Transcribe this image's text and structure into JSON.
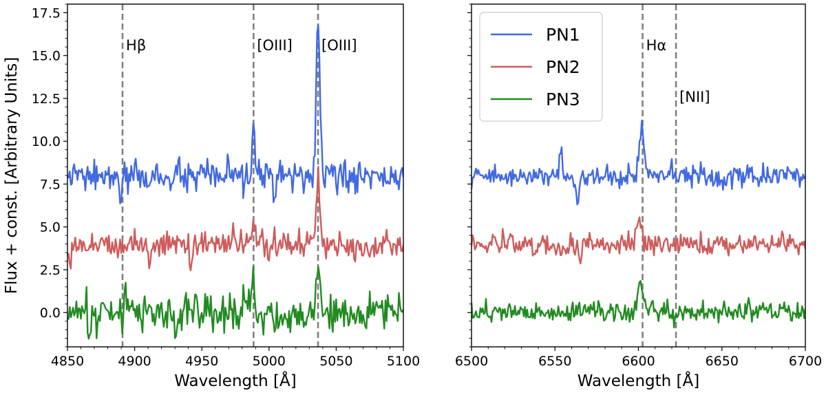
{
  "chart_data": [
    {
      "type": "line",
      "panel": "left",
      "xlabel": "Wavelength [Å]",
      "ylabel": "Flux + const. [Arbitrary Units]",
      "xlim": [
        4850,
        5100
      ],
      "ylim": [
        -2,
        18
      ],
      "xticks": [
        4850,
        4900,
        4950,
        5000,
        5050,
        5100
      ],
      "xtick_labels": [
        "4850",
        "4900",
        "4950",
        "5000",
        "5050",
        "5100"
      ],
      "yticks": [
        0,
        2.5,
        5,
        7.5,
        10,
        12.5,
        15,
        17.5
      ],
      "ytick_labels": [
        "0.0",
        "2.5",
        "5.0",
        "7.5",
        "10.0",
        "12.5",
        "15.0",
        "17.5"
      ],
      "vlines": [
        {
          "x": 4891,
          "label": "Hβ",
          "label_y": 15.3
        },
        {
          "x": 4988.5,
          "label": "[OIII]",
          "label_y": 15.3
        },
        {
          "x": 5036.5,
          "label": "[OIII]",
          "label_y": 15.3
        }
      ],
      "series": [
        {
          "name": "PN1",
          "color": "#4169e1",
          "base": 7.9,
          "noise": 0.45,
          "peaks": [
            {
              "x": 4988.5,
              "h": 2.9,
              "w": 1.1
            },
            {
              "x": 5036.5,
              "h": 9.4,
              "w": 1.3
            }
          ],
          "dips": [
            {
              "x": 4889.5,
              "h": -1.5,
              "w": 0.8
            }
          ]
        },
        {
          "name": "PN2",
          "color": "#cd5c5c",
          "base": 4.0,
          "noise": 0.4,
          "peaks": [
            {
              "x": 4988.5,
              "h": 1.1,
              "w": 1.1
            },
            {
              "x": 5036.5,
              "h": 3.6,
              "w": 1.3
            }
          ],
          "dips": [
            {
              "x": 4942,
              "h": -1.4,
              "w": 0.8
            },
            {
              "x": 4911,
              "h": -1.5,
              "w": 0.8
            },
            {
              "x": 4851,
              "h": -1.0,
              "w": 0.6
            }
          ]
        },
        {
          "name": "PN3",
          "color": "#228b22",
          "base": 0.0,
          "noise": 0.55,
          "peaks": [
            {
              "x": 4988,
              "h": 2.4,
              "w": 1.0
            },
            {
              "x": 5036.5,
              "h": 2.9,
              "w": 1.2
            },
            {
              "x": 4893,
              "h": 1.5,
              "w": 0.8
            }
          ],
          "dips": [
            {
              "x": 4931,
              "h": -1.8,
              "w": 0.8
            },
            {
              "x": 4866,
              "h": -1.5,
              "w": 0.8
            }
          ]
        }
      ]
    },
    {
      "type": "line",
      "panel": "right",
      "xlabel": "Wavelength [Å]",
      "xlim": [
        6500,
        6700
      ],
      "ylim": [
        -2,
        18
      ],
      "xticks": [
        6500,
        6550,
        6600,
        6650,
        6700
      ],
      "xtick_labels": [
        "6500",
        "6550",
        "6600",
        "6650",
        "6700"
      ],
      "yticks": [
        0,
        2.5,
        5,
        7.5,
        10,
        12.5,
        15,
        17.5
      ],
      "vlines": [
        {
          "x": 6602.5,
          "label": "Hα",
          "label_y": 15.3
        },
        {
          "x": 6622.5,
          "label": "[NII]",
          "label_y": 12.3
        }
      ],
      "legend": {
        "location": "upper left",
        "entries": [
          "PN1",
          "PN2",
          "PN3"
        ]
      },
      "series": [
        {
          "name": "PN1",
          "color": "#4169e1",
          "base": 7.95,
          "noise": 0.3,
          "peaks": [
            {
              "x": 6602,
              "h": 2.9,
              "w": 1.4
            },
            {
              "x": 6553.5,
              "h": 1.6,
              "w": 0.8
            }
          ],
          "dips": [
            {
              "x": 6563.5,
              "h": -1.6,
              "w": 0.8
            }
          ]
        },
        {
          "name": "PN2",
          "color": "#cd5c5c",
          "base": 4.0,
          "noise": 0.3,
          "peaks": [
            {
              "x": 6600.5,
              "h": 1.3,
              "w": 1.4
            }
          ],
          "dips": [
            {
              "x": 6565,
              "h": -0.9,
              "w": 0.8
            }
          ]
        },
        {
          "name": "PN3",
          "color": "#228b22",
          "base": 0.05,
          "noise": 0.3,
          "peaks": [
            {
              "x": 6601.5,
              "h": 1.7,
              "w": 1.6
            }
          ],
          "dips": []
        }
      ]
    }
  ]
}
